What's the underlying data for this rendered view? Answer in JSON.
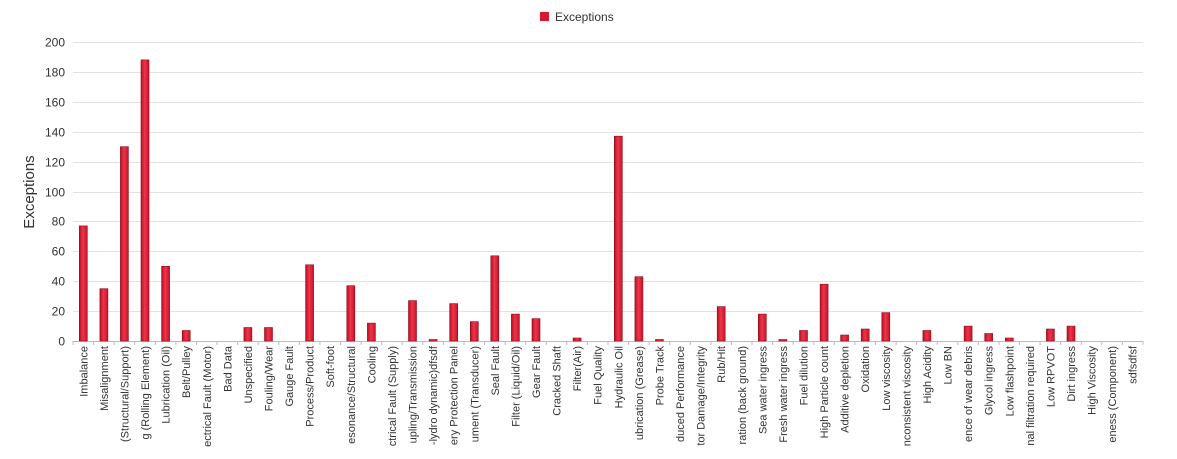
{
  "chart_data": {
    "type": "bar",
    "title": "",
    "xlabel": "",
    "ylabel": "Exceptions",
    "ylim": [
      0,
      200
    ],
    "yticks": [
      0,
      20,
      40,
      60,
      80,
      100,
      120,
      140,
      160,
      180,
      200
    ],
    "legend_position": "top-center",
    "grid": true,
    "series_color": "#d9182d",
    "categories": [
      "Imbalance",
      "Misalignment",
      "(Structural/Support)",
      "g (Rolling Element)",
      "Lubrication (Oil)",
      "Belt/Pulley",
      "ectrical Fault (Motor)",
      "Bad Data",
      "Unspecified",
      "Fouling/Wear",
      "Gauge Fault",
      "Process/Product",
      "Soft-foot",
      "esonance/Structural",
      "Cooling",
      "ctrical Fault (Supply)",
      "upling/Transmission",
      "-lydro dynamic)dfsdf",
      "ery Protection Panel",
      "ument (Transducer)",
      "Seal Fault",
      "Filter (Liquid/Oil)",
      "Gear Fault",
      "Cracked Shaft",
      "Filter(Air)",
      "Fuel Quality",
      "Hydraulic Oil",
      "ubrication (Grease)",
      "Probe Track",
      "duced Performance",
      "tor Damage/Integrity",
      "Rub/Hit",
      "ration (back ground)",
      "Sea water ingress",
      "Fresh water ingress",
      "Fuel dilution",
      "High Particle count",
      "Additive depletion",
      "Oxidation",
      "Low viscosity",
      "nconsistent viscosity",
      "High Acidity",
      "Low BN",
      "ence of wear debris",
      "Glycol ingress",
      "Low flashpoint",
      "nal filtration required",
      "Low RPVOT",
      "Dirt ingress",
      "High Viscosity",
      "eness (Component)",
      "sdfsdfsf"
    ],
    "series": [
      {
        "name": "Exceptions",
        "values": [
          77,
          35,
          130,
          188,
          50,
          7,
          0,
          0,
          9,
          9,
          0,
          51,
          0,
          37,
          12,
          0,
          27,
          1,
          25,
          13,
          57,
          18,
          15,
          0,
          2,
          0,
          137,
          43,
          1,
          0,
          0,
          23,
          0,
          18,
          1,
          7,
          38,
          4,
          8,
          19,
          0,
          7,
          0,
          10,
          5,
          2,
          0,
          8,
          10,
          0,
          0,
          0
        ]
      }
    ]
  }
}
